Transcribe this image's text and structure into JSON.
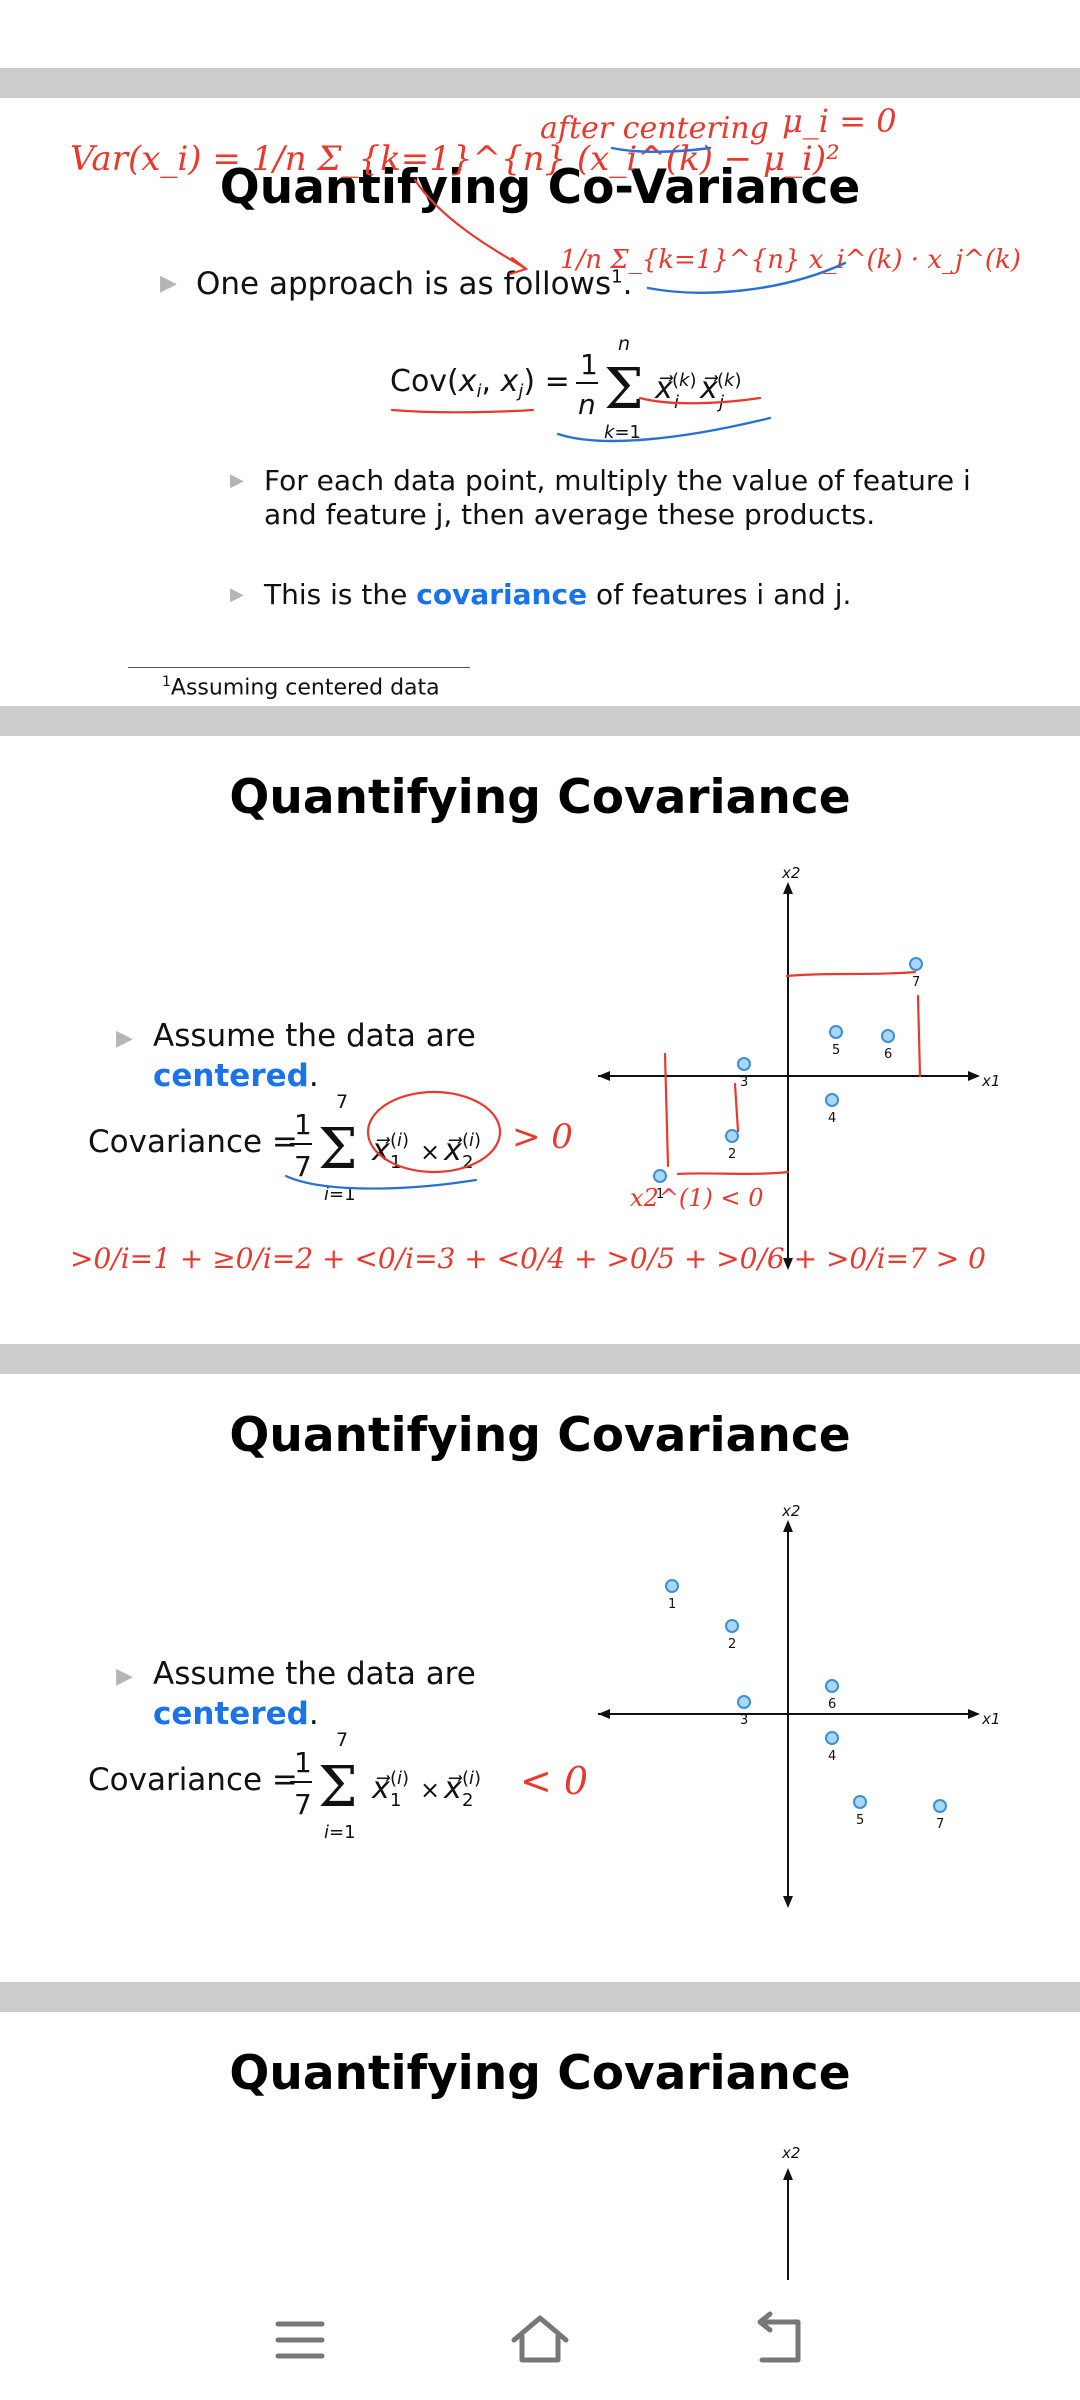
{
  "slides": [
    {
      "title": "Quantifying Co-Variance",
      "bullet1": "One approach is as follows",
      "bullet1_sup": "1",
      "formula": "Cov(x_i, x_j) = (1/n) Σ_{k=1}^{n} x_i^(k) x_j^(k)",
      "sub1_a": "For each data point, multiply the value of feature i",
      "sub1_b": "and feature j, then average these products.",
      "sub2_pre": "This is the ",
      "sub2_term": "covariance",
      "sub2_post": " of features i and j.",
      "footnote": "Assuming centered data",
      "footnote_sup": "1"
    },
    {
      "title": "Quantifying Covariance",
      "bullet_a": "Assume the data are",
      "bullet_b_term": "centered",
      "formula_label": "Covariance =",
      "x_axis_label": "x1",
      "y_axis_label": "x2",
      "points": [
        {
          "label": "1",
          "x": -1.6,
          "y": -1.25
        },
        {
          "label": "2",
          "x": -0.7,
          "y": -0.75
        },
        {
          "label": "3",
          "x": -0.55,
          "y": 0.15
        },
        {
          "label": "4",
          "x": 0.55,
          "y": -0.3
        },
        {
          "label": "5",
          "x": 0.6,
          "y": 0.55
        },
        {
          "label": "6",
          "x": 1.25,
          "y": 0.5
        },
        {
          "label": "7",
          "x": 1.6,
          "y": 1.4
        }
      ]
    },
    {
      "title": "Quantifying Covariance",
      "bullet_a": "Assume the data are",
      "bullet_b_term": "centered",
      "formula_label": "Covariance =",
      "x_axis_label": "x1",
      "y_axis_label": "x2",
      "points": [
        {
          "label": "1",
          "x": -1.45,
          "y": 1.6
        },
        {
          "label": "2",
          "x": -0.7,
          "y": 1.1
        },
        {
          "label": "3",
          "x": -0.55,
          "y": 0.15
        },
        {
          "label": "4",
          "x": 0.55,
          "y": -0.3
        },
        {
          "label": "5",
          "x": 0.9,
          "y": -1.1
        },
        {
          "label": "6",
          "x": 0.55,
          "y": 0.35
        },
        {
          "label": "7",
          "x": 1.9,
          "y": -1.15
        }
      ]
    },
    {
      "title": "Quantifying Covariance",
      "y_axis_label": "x2"
    }
  ],
  "handwriting": {
    "slide1_var": "Var(x_i) = 1/n Σ_{k=1}^{n} (x_i^(k) − μ_i)²",
    "slide1_after": "after centering",
    "slide1_mu": "μ_i = 0",
    "slide1_sum": "1/n Σ_{k=1}^{n} x_i^(k) · x_j^(k)",
    "slide2_result": "> 0",
    "slide2_sum": ">0/i=1 + ≥0/i=2 + <0/i=3 + <0/4 + >0/5 + >0/6 + >0/i=7 > 0",
    "slide2_note": "x2^(1) < 0",
    "slide3_result": "< 0"
  },
  "nav": {
    "menu": "menu-icon",
    "home": "home-icon",
    "back": "back-icon"
  },
  "colors": {
    "accent_blue": "#1a73e8",
    "ink_red": "#e8392e",
    "ink_blue": "#2a6fd6",
    "point_fill": "#a9d8f5",
    "point_stroke": "#3b8fd6"
  }
}
